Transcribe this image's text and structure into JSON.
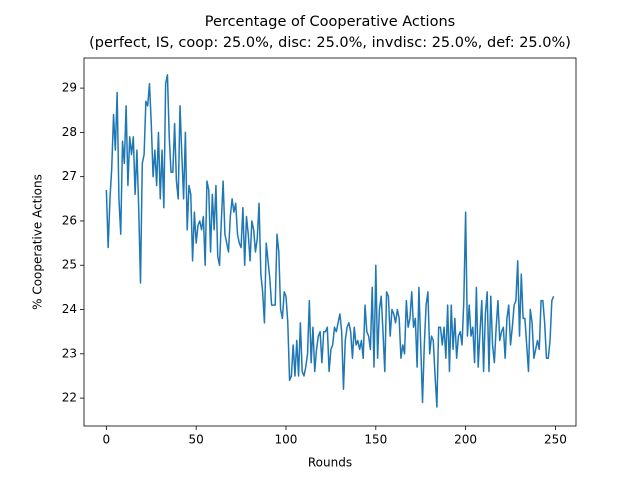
{
  "chart_data": {
    "type": "line",
    "title": "Percentage of Cooperative Actions",
    "subtitle": "(perfect, IS, coop: 25.0%, disc: 25.0%, invdisc: 25.0%, def: 25.0%)",
    "xlabel": "Rounds",
    "ylabel": "% Cooperative Actions",
    "xlim": [
      -12.45,
      261.45
    ],
    "ylim": [
      21.37,
      29.68
    ],
    "xticks": [
      0,
      50,
      100,
      150,
      200,
      250
    ],
    "yticks": [
      22,
      23,
      24,
      25,
      26,
      27,
      28,
      29
    ],
    "x": [
      0,
      1,
      2,
      3,
      4,
      5,
      6,
      7,
      8,
      9,
      10,
      11,
      12,
      13,
      14,
      15,
      16,
      17,
      18,
      19,
      20,
      21,
      22,
      23,
      24,
      25,
      26,
      27,
      28,
      29,
      30,
      31,
      32,
      33,
      34,
      35,
      36,
      37,
      38,
      39,
      40,
      41,
      42,
      43,
      44,
      45,
      46,
      47,
      48,
      49,
      50,
      51,
      52,
      53,
      54,
      55,
      56,
      57,
      58,
      59,
      60,
      61,
      62,
      63,
      64,
      65,
      66,
      67,
      68,
      69,
      70,
      71,
      72,
      73,
      74,
      75,
      76,
      77,
      78,
      79,
      80,
      81,
      82,
      83,
      84,
      85,
      86,
      87,
      88,
      89,
      90,
      91,
      92,
      93,
      94,
      95,
      96,
      97,
      98,
      99,
      100,
      101,
      102,
      103,
      104,
      105,
      106,
      107,
      108,
      109,
      110,
      111,
      112,
      113,
      114,
      115,
      116,
      117,
      118,
      119,
      120,
      121,
      122,
      123,
      124,
      125,
      126,
      127,
      128,
      129,
      130,
      131,
      132,
      133,
      134,
      135,
      136,
      137,
      138,
      139,
      140,
      141,
      142,
      143,
      144,
      145,
      146,
      147,
      148,
      149,
      150,
      151,
      152,
      153,
      154,
      155,
      156,
      157,
      158,
      159,
      160,
      161,
      162,
      163,
      164,
      165,
      166,
      167,
      168,
      169,
      170,
      171,
      172,
      173,
      174,
      175,
      176,
      177,
      178,
      179,
      180,
      181,
      182,
      183,
      184,
      185,
      186,
      187,
      188,
      189,
      190,
      191,
      192,
      193,
      194,
      195,
      196,
      197,
      198,
      199,
      200,
      201,
      202,
      203,
      204,
      205,
      206,
      207,
      208,
      209,
      210,
      211,
      212,
      213,
      214,
      215,
      216,
      217,
      218,
      219,
      220,
      221,
      222,
      223,
      224,
      225,
      226,
      227,
      228,
      229,
      230,
      231,
      232,
      233,
      234,
      235,
      236,
      237,
      238,
      239,
      240,
      241,
      242,
      243,
      244,
      245,
      246,
      247,
      248,
      249
    ],
    "series": [
      {
        "color": "#1f77b4",
        "values": [
          26.7,
          25.4,
          26.5,
          27.2,
          28.4,
          27.6,
          28.9,
          26.5,
          25.7,
          27.8,
          27.3,
          28.6,
          26.8,
          27.9,
          27.5,
          27.9,
          26.6,
          27.6,
          26.3,
          24.6,
          27.3,
          27.5,
          28.7,
          28.6,
          29.1,
          28.2,
          27.0,
          27.6,
          26.8,
          28.0,
          26.5,
          27.6,
          26.3,
          29.1,
          29.3,
          27.9,
          27.1,
          27.1,
          28.2,
          26.9,
          26.5,
          28.6,
          27.5,
          26.5,
          28.0,
          25.8,
          26.8,
          26.6,
          25.1,
          26.2,
          25.5,
          25.9,
          26.0,
          25.8,
          26.1,
          25.0,
          26.9,
          26.7,
          25.3,
          26.6,
          25.8,
          26.8,
          25.2,
          25.0,
          26.0,
          26.9,
          25.7,
          25.5,
          25.3,
          26.1,
          26.5,
          26.2,
          26.4,
          25.7,
          25.5,
          25.4,
          26.3,
          25.0,
          26.1,
          25.7,
          25.1,
          26.0,
          25.8,
          25.3,
          25.6,
          26.4,
          24.8,
          24.4,
          23.7,
          25.5,
          25.1,
          24.7,
          24.1,
          24.1,
          24.1,
          25.7,
          25.3,
          24.0,
          23.8,
          24.4,
          24.3,
          23.7,
          22.4,
          22.5,
          23.2,
          22.5,
          23.3,
          22.5,
          23.7,
          22.6,
          22.5,
          22.7,
          23.0,
          24.2,
          22.8,
          23.6,
          22.6,
          23.1,
          23.4,
          23.5,
          22.8,
          23.5,
          23.5,
          23.6,
          22.6,
          23.1,
          23.2,
          23.6,
          23.5,
          23.7,
          23.9,
          23.5,
          22.2,
          23.3,
          23.6,
          23.7,
          23.5,
          22.9,
          23.6,
          23.2,
          23.3,
          23.1,
          23.3,
          22.9,
          24.1,
          23.5,
          23.4,
          23.1,
          24.5,
          22.7,
          25.0,
          22.9,
          24.0,
          24.3,
          23.5,
          22.6,
          24.4,
          24.3,
          23.4,
          24.0,
          23.9,
          23.7,
          24.0,
          23.8,
          22.9,
          23.2,
          23.0,
          24.2,
          23.6,
          23.8,
          24.4,
          23.6,
          23.8,
          22.7,
          24.5,
          23.2,
          21.9,
          23.2,
          24.1,
          24.4,
          23.0,
          23.4,
          23.3,
          22.5,
          21.8,
          23.6,
          23.6,
          23.2,
          23.6,
          22.9,
          24.1,
          22.6,
          24.1,
          23.1,
          23.8,
          22.9,
          23.4,
          23.5,
          23.2,
          24.2,
          26.2,
          23.4,
          24.1,
          23.4,
          23.6,
          22.8,
          24.5,
          22.7,
          23.5,
          24.2,
          22.6,
          23.9,
          24.4,
          22.6,
          24.3,
          23.2,
          22.8,
          23.6,
          24.2,
          23.3,
          23.5,
          23.6,
          22.9,
          23.8,
          24.1,
          23.2,
          23.6,
          24.1,
          24.2,
          25.1,
          23.4,
          24.8,
          23.8,
          23.8,
          23.2,
          22.6,
          24.0,
          23.7,
          22.9,
          23.1,
          23.3,
          23.1,
          24.2,
          24.2,
          23.7,
          22.9,
          22.9,
          23.3,
          24.2,
          24.3
        ]
      }
    ]
  }
}
